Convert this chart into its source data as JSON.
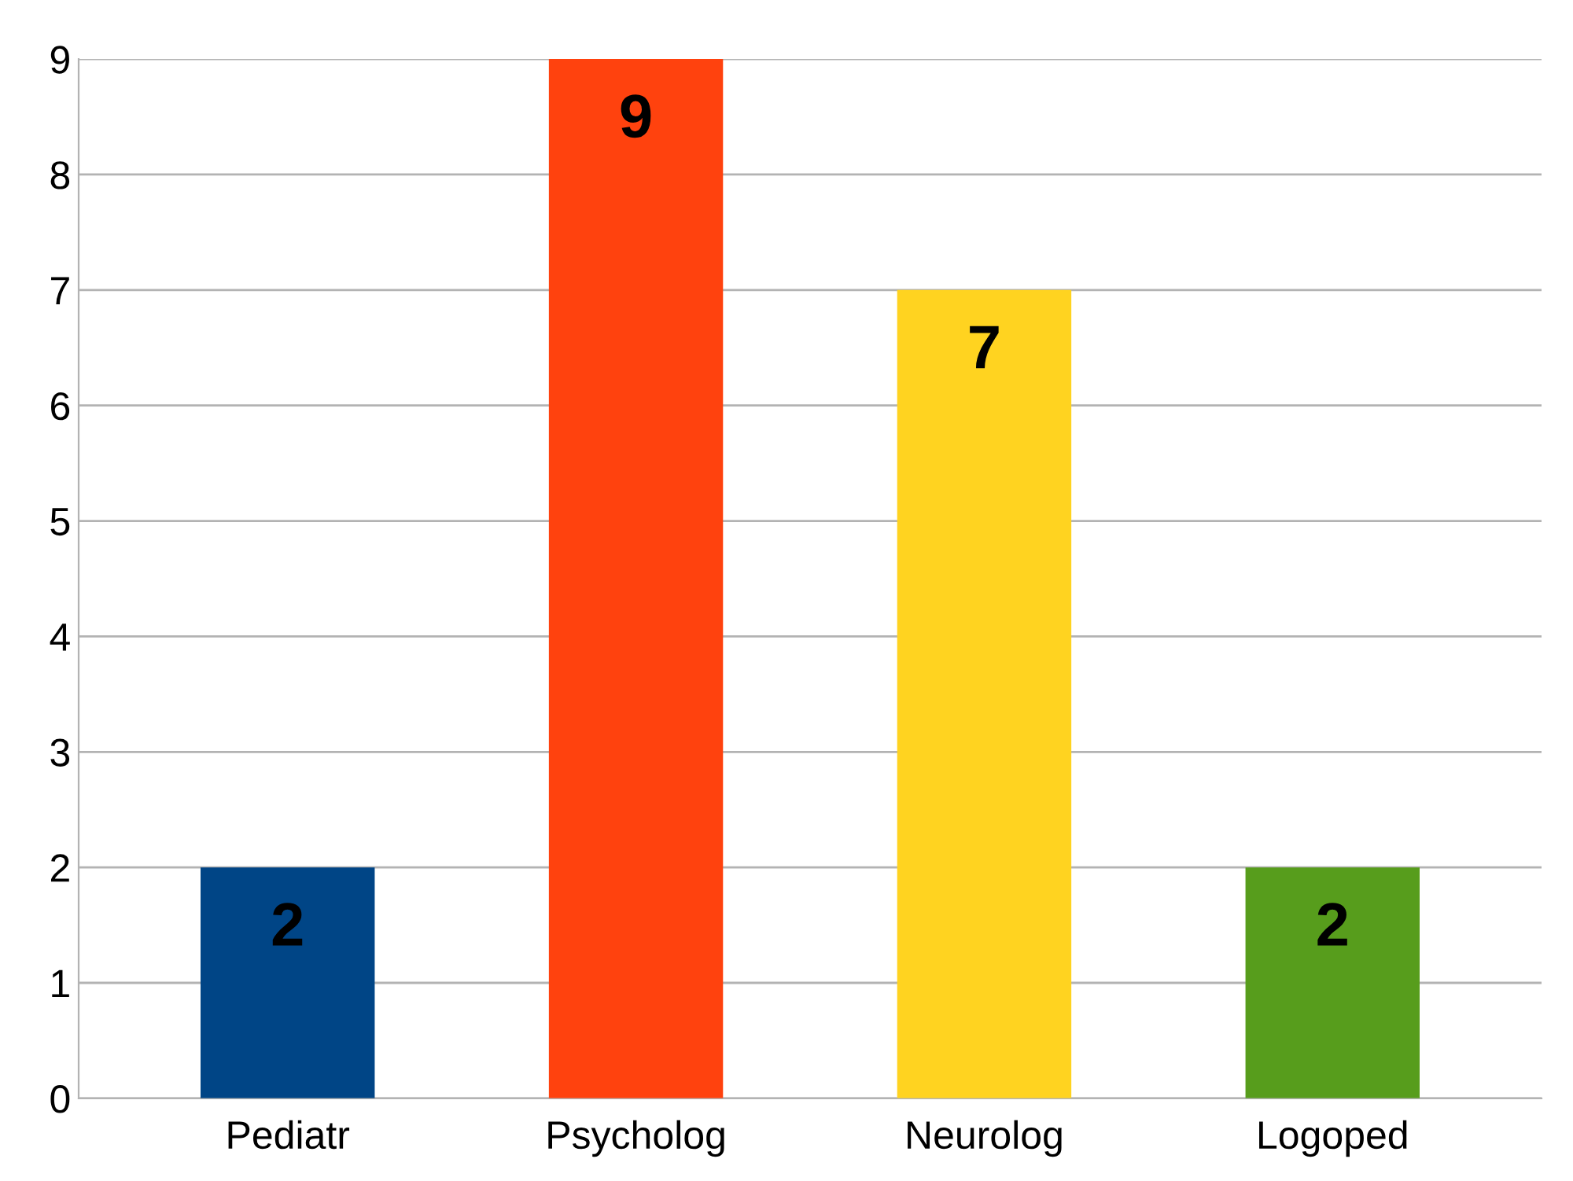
{
  "chart_data": {
    "type": "bar",
    "categories": [
      "Pediatr",
      "Psycholog",
      "Neurolog",
      "Logoped"
    ],
    "values": [
      2,
      9,
      7,
      2
    ],
    "colors": [
      "#004586",
      "#ff420e",
      "#ffd320",
      "#579d1c"
    ],
    "ylim": [
      0,
      9
    ],
    "yticks": [
      0,
      1,
      2,
      3,
      4,
      5,
      6,
      7,
      8,
      9
    ],
    "grid": "y",
    "data_labels": true,
    "legend": false
  }
}
